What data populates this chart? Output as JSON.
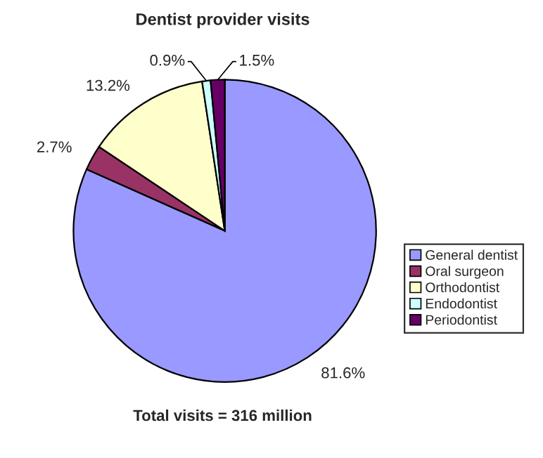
{
  "chart_data": {
    "type": "pie",
    "title": "Dentist provider visits",
    "categories": [
      "General dentist",
      "Oral surgeon",
      "Orthodontist",
      "Endodontist",
      "Periodontist"
    ],
    "values": [
      81.6,
      2.7,
      13.2,
      0.9,
      1.5
    ],
    "value_labels": [
      "81.6%",
      "2.7%",
      "13.2%",
      "0.9%",
      "1.5%"
    ],
    "colors": [
      "#9999ff",
      "#993366",
      "#ffffcc",
      "#ccffff",
      "#660066"
    ],
    "legend": "right",
    "annotations": [
      "Total visits = 316 million"
    ]
  }
}
